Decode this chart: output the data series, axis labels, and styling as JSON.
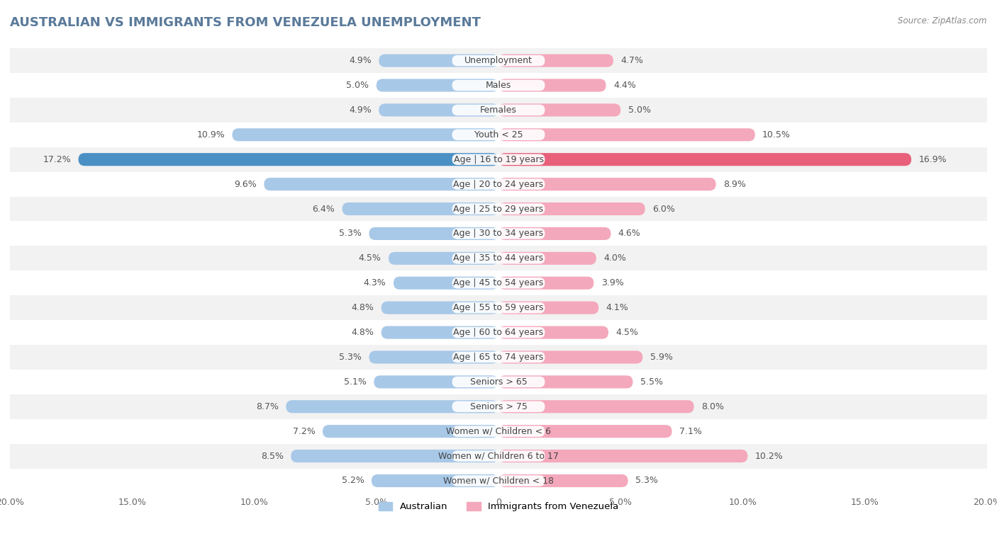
{
  "title": "AUSTRALIAN VS IMMIGRANTS FROM VENEZUELA UNEMPLOYMENT",
  "source": "Source: ZipAtlas.com",
  "categories": [
    "Unemployment",
    "Males",
    "Females",
    "Youth < 25",
    "Age | 16 to 19 years",
    "Age | 20 to 24 years",
    "Age | 25 to 29 years",
    "Age | 30 to 34 years",
    "Age | 35 to 44 years",
    "Age | 45 to 54 years",
    "Age | 55 to 59 years",
    "Age | 60 to 64 years",
    "Age | 65 to 74 years",
    "Seniors > 65",
    "Seniors > 75",
    "Women w/ Children < 6",
    "Women w/ Children 6 to 17",
    "Women w/ Children < 18"
  ],
  "australian": [
    4.9,
    5.0,
    4.9,
    10.9,
    17.2,
    9.6,
    6.4,
    5.3,
    4.5,
    4.3,
    4.8,
    4.8,
    5.3,
    5.1,
    8.7,
    7.2,
    8.5,
    5.2
  ],
  "venezuela": [
    4.7,
    4.4,
    5.0,
    10.5,
    16.9,
    8.9,
    6.0,
    4.6,
    4.0,
    3.9,
    4.1,
    4.5,
    5.9,
    5.5,
    8.0,
    7.1,
    10.2,
    5.3
  ],
  "australian_color": "#a8c8e8",
  "venezuela_color": "#f4a8bc",
  "highlight_australian_color": "#4a90c4",
  "highlight_venezuela_color": "#e8607a",
  "bg_color": "#ffffff",
  "row_bg_even": "#f2f2f2",
  "row_bg_odd": "#ffffff",
  "xmax": 20.0,
  "legend_australian": "Australian",
  "legend_venezuela": "Immigrants from Venezuela",
  "title_color": "#5a7a9a",
  "label_fontsize": 9,
  "value_fontsize": 9
}
